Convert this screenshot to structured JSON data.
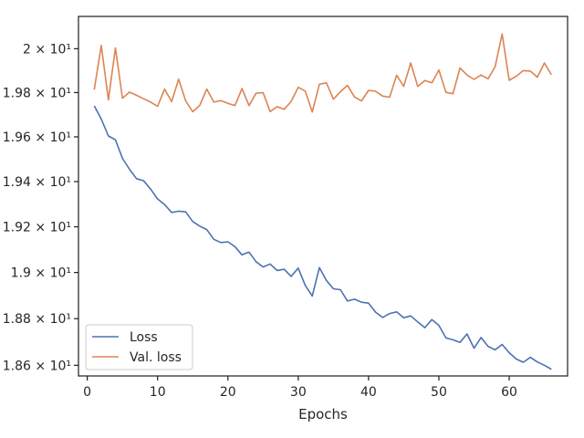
{
  "chart_data": {
    "type": "line",
    "xlabel": "Epochs",
    "ylabel": "",
    "xlim": [
      -1.25,
      68.3
    ],
    "ylim": [
      18.5547,
      20.1487
    ],
    "yscale": "log",
    "grid": false,
    "legend_position": "lower-left",
    "xticks": [
      0,
      10,
      20,
      30,
      40,
      50,
      60
    ],
    "xtick_labels": [
      "0",
      "10",
      "20",
      "30",
      "40",
      "50",
      "60"
    ],
    "yticks": [
      18.6,
      18.8,
      19.0,
      19.2,
      19.4,
      19.6,
      19.8,
      20.0
    ],
    "ytick_labels": [
      "1.86 × 10¹",
      "1.88 × 10¹",
      "1.9 × 10¹",
      "1.92 × 10¹",
      "1.94 × 10¹",
      "1.96 × 10¹",
      "1.98 × 10¹",
      "2 × 10¹"
    ],
    "x": [
      1,
      2,
      3,
      4,
      5,
      6,
      7,
      8,
      9,
      10,
      11,
      12,
      13,
      14,
      15,
      16,
      17,
      18,
      19,
      20,
      21,
      22,
      23,
      24,
      25,
      26,
      27,
      28,
      29,
      30,
      31,
      32,
      33,
      34,
      35,
      36,
      37,
      38,
      39,
      40,
      41,
      42,
      43,
      44,
      45,
      46,
      47,
      48,
      49,
      50,
      51,
      52,
      53,
      54,
      55,
      56,
      57,
      58,
      59,
      60,
      61,
      62,
      63,
      64,
      65,
      66
    ],
    "series": [
      {
        "name": "Loss",
        "color": "#4c72b0",
        "values": [
          19.74,
          19.68,
          19.604,
          19.587,
          19.504,
          19.455,
          19.413,
          19.404,
          19.367,
          19.323,
          19.298,
          19.263,
          19.269,
          19.266,
          19.223,
          19.203,
          19.188,
          19.145,
          19.131,
          19.134,
          19.113,
          19.077,
          19.089,
          19.047,
          19.024,
          19.037,
          19.009,
          19.014,
          18.983,
          19.019,
          18.944,
          18.898,
          19.021,
          18.965,
          18.929,
          18.925,
          18.876,
          18.884,
          18.871,
          18.867,
          18.828,
          18.805,
          18.822,
          18.829,
          18.804,
          18.812,
          18.786,
          18.761,
          18.796,
          18.771,
          18.717,
          18.709,
          18.698,
          18.734,
          18.673,
          18.719,
          18.681,
          18.666,
          18.689,
          18.654,
          18.627,
          18.613,
          18.634,
          18.614,
          18.6,
          18.583
        ]
      },
      {
        "name": "Val. loss",
        "color": "#dd8452",
        "values": [
          19.813,
          20.015,
          19.767,
          20.004,
          19.774,
          19.802,
          19.788,
          19.772,
          19.757,
          19.738,
          19.816,
          19.759,
          19.861,
          19.762,
          19.713,
          19.742,
          19.816,
          19.757,
          19.764,
          19.751,
          19.741,
          19.818,
          19.741,
          19.797,
          19.8,
          19.714,
          19.736,
          19.724,
          19.76,
          19.824,
          19.807,
          19.712,
          19.838,
          19.844,
          19.77,
          19.804,
          19.833,
          19.78,
          19.762,
          19.81,
          19.806,
          19.784,
          19.779,
          19.879,
          19.828,
          19.935,
          19.828,
          19.855,
          19.844,
          19.903,
          19.801,
          19.795,
          19.912,
          19.88,
          19.86,
          19.88,
          19.863,
          19.918,
          20.068,
          19.856,
          19.874,
          19.9,
          19.898,
          19.87,
          19.935,
          19.881
        ]
      }
    ]
  }
}
